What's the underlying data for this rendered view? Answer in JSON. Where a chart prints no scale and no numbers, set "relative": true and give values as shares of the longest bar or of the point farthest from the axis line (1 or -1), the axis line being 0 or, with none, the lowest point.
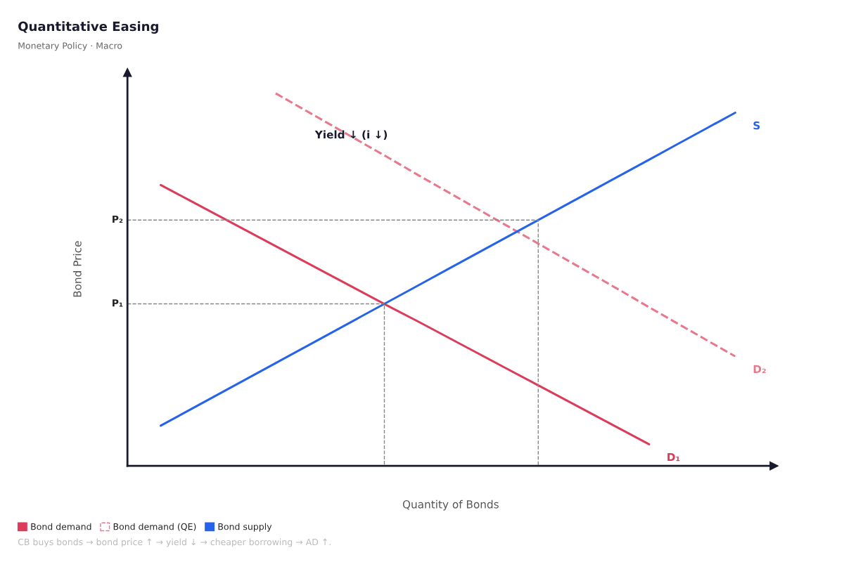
{
  "chart_data": {
    "type": "line",
    "relative": true,
    "title": "Quantitative Easing",
    "subtitle": "Monetary Policy · Macro",
    "xlabel": "Quantity of Bonds",
    "ylabel": "Bond Price",
    "legend": "bottom",
    "marker": "none",
    "categories": [
      null,
      null,
      null,
      null,
      null,
      null,
      null,
      null,
      null,
      null,
      null,
      null,
      null,
      null,
      null,
      null,
      null,
      null,
      null,
      null,
      null
    ],
    "series": [
      {
        "name": "Bond demand",
        "color": "#dc3c5a",
        "line_style": "solid",
        "values": [
          0.754,
          0.713,
          0.672,
          0.631,
          0.59,
          0.549,
          0.508,
          0.467,
          0.426,
          0.386,
          0.345,
          0.304,
          0.263,
          0.222,
          0.181,
          0.14,
          0.099,
          0.058,
          null,
          null,
          null
        ]
      },
      {
        "name": "Bond demand (QE)",
        "color": "#e8788c",
        "line_style": "dashed",
        "values": [
          null,
          null,
          null,
          null,
          1.0,
          0.956,
          0.912,
          0.868,
          0.824,
          0.779,
          0.735,
          0.691,
          0.647,
          0.603,
          0.559,
          0.515,
          0.471,
          0.426,
          0.382,
          0.338,
          0.294
        ]
      },
      {
        "name": "Bond supply",
        "color": "#2563eb",
        "line_style": "solid",
        "values": [
          0.108,
          0.15,
          0.192,
          0.234,
          0.276,
          0.318,
          0.36,
          0.402,
          0.444,
          0.486,
          0.528,
          0.57,
          0.612,
          0.654,
          0.696,
          0.738,
          0.78,
          0.822,
          0.864,
          0.906,
          0.948
        ]
      }
    ],
    "ref_lines": [
      {
        "axis": "y",
        "value": 0.435,
        "label": "P₁",
        "color": "#888888",
        "line_style": "dashed"
      },
      {
        "axis": "y",
        "value": 0.66,
        "label": "P₂",
        "color": "#888888",
        "line_style": "dashed"
      }
    ],
    "annotations": [
      "Yield ↓ (i ↓)",
      "D₁",
      "D₂",
      "S",
      "CB buys bonds → bond price ↑ → yield ↓ → cheaper borrowing → AD ↑."
    ]
  }
}
